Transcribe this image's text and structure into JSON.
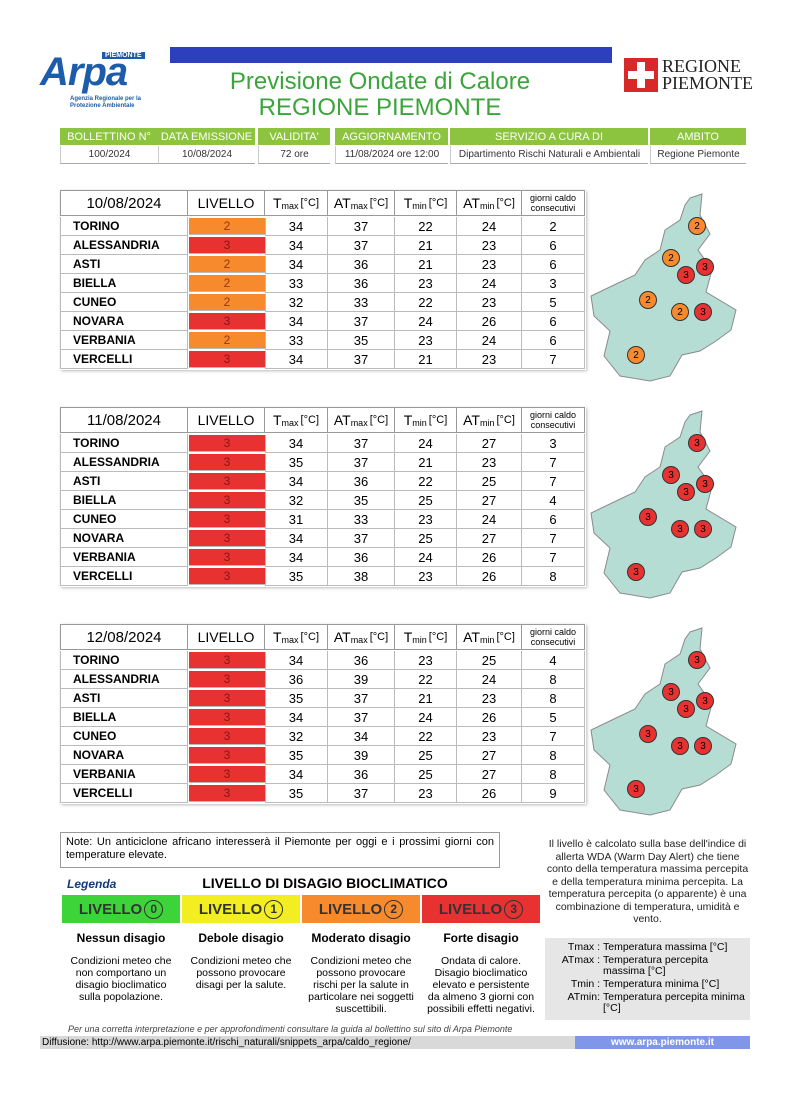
{
  "header": {
    "logo": {
      "name": "Arpa",
      "region": "PIEMONTE",
      "subtitle": "Agenzia Regionale per la Protezione Ambientale"
    },
    "title": "Previsione Ondate di Calore",
    "subtitle": "REGIONE PIEMONTE",
    "region_logo": [
      "REGIONE",
      "PIEMONTE"
    ]
  },
  "info": {
    "headers": [
      "BOLLETTINO N°",
      "DATA EMISSIONE",
      "VALIDITA'",
      "AGGIORNAMENTO",
      "SERVIZIO A CURA DI",
      "AMBITO"
    ],
    "values": [
      "100/2024",
      "10/08/2024",
      "72 ore",
      "11/08/2024 ore 12:00",
      "Dipartimento Rischi Naturali e Ambientali",
      "Regione Piemonte"
    ]
  },
  "columns": [
    {
      "text": "LIVELLO"
    },
    {
      "base": "T",
      "sub": "max",
      "unit": "[°C]"
    },
    {
      "base": "AT",
      "sub": "max",
      "unit": "[°C]"
    },
    {
      "base": "T",
      "sub": "min",
      "unit": "[°C]"
    },
    {
      "base": "AT",
      "sub": "min",
      "unit": "[°C]"
    },
    {
      "text": "giorni caldo consecutivi"
    }
  ],
  "days": [
    {
      "date": "10/08/2024",
      "rows": [
        [
          "TORINO",
          2,
          34,
          37,
          22,
          24,
          2
        ],
        [
          "ALESSANDRIA",
          3,
          34,
          37,
          21,
          23,
          6
        ],
        [
          "ASTI",
          2,
          34,
          36,
          21,
          23,
          6
        ],
        [
          "BIELLA",
          2,
          33,
          36,
          23,
          24,
          3
        ],
        [
          "CUNEO",
          2,
          32,
          33,
          22,
          23,
          5
        ],
        [
          "NOVARA",
          3,
          34,
          37,
          24,
          26,
          6
        ],
        [
          "VERBANIA",
          2,
          33,
          35,
          23,
          24,
          6
        ],
        [
          "VERCELLI",
          3,
          34,
          37,
          21,
          23,
          7
        ]
      ]
    },
    {
      "date": "11/08/2024",
      "rows": [
        [
          "TORINO",
          3,
          34,
          37,
          24,
          27,
          3
        ],
        [
          "ALESSANDRIA",
          3,
          35,
          37,
          21,
          23,
          7
        ],
        [
          "ASTI",
          3,
          34,
          36,
          22,
          25,
          7
        ],
        [
          "BIELLA",
          3,
          32,
          35,
          25,
          27,
          4
        ],
        [
          "CUNEO",
          3,
          31,
          33,
          23,
          24,
          6
        ],
        [
          "NOVARA",
          3,
          34,
          37,
          25,
          27,
          7
        ],
        [
          "VERBANIA",
          3,
          34,
          36,
          24,
          26,
          7
        ],
        [
          "VERCELLI",
          3,
          35,
          38,
          23,
          26,
          8
        ]
      ]
    },
    {
      "date": "12/08/2024",
      "rows": [
        [
          "TORINO",
          3,
          34,
          36,
          23,
          25,
          4
        ],
        [
          "ALESSANDRIA",
          3,
          36,
          39,
          22,
          24,
          8
        ],
        [
          "ASTI",
          3,
          35,
          37,
          21,
          23,
          8
        ],
        [
          "BIELLA",
          3,
          34,
          37,
          24,
          26,
          5
        ],
        [
          "CUNEO",
          3,
          32,
          34,
          22,
          23,
          7
        ],
        [
          "NOVARA",
          3,
          35,
          39,
          25,
          27,
          8
        ],
        [
          "VERBANIA",
          3,
          34,
          36,
          25,
          27,
          8
        ],
        [
          "VERCELLI",
          3,
          35,
          37,
          23,
          26,
          9
        ]
      ]
    }
  ],
  "note": "Note: Un anticiclone africano interesserà il Piemonte per oggi e i prossimi giorni con temperature elevate.",
  "legend": {
    "heading": "Legenda",
    "title": "LIVELLO DI DISAGIO BIOCLIMATICO",
    "levels": [
      {
        "label": "LIVELLO",
        "number": 0,
        "color": "#3dd43a",
        "name": "Nessun disagio",
        "description": "Condizioni meteo che non comportano un disagio bioclimatico sulla popolazione."
      },
      {
        "label": "LIVELLO",
        "number": 1,
        "color": "#f3ee20",
        "name": "Debole disagio",
        "description": "Condizioni meteo che possono provocare disagi per la salute."
      },
      {
        "label": "LIVELLO",
        "number": 2,
        "color": "#f68a2c",
        "name": "Moderato disagio",
        "description": "Condizioni meteo che possono provocare rischi per la salute in particolare nei soggetti suscettibili."
      },
      {
        "label": "LIVELLO",
        "number": 3,
        "color": "#e83131",
        "name": "Forte disagio",
        "description": "Ondata di calore. Disagio bioclimatico elevato e persistente da almeno 3 giorni con possibili effetti negativi."
      }
    ]
  },
  "explanation": "Il livello è calcolato sulla base dell'indice di allerta WDA (Warm Day Alert) che tiene conto della temperatura massima percepita e della temperatura minima percepita. La temperatura percepita (o apparente) è una combinazione di temperatura, umidità e vento.",
  "definitions": [
    {
      "term": "Tmax :",
      "def": "Temperatura massima [°C]"
    },
    {
      "term": "ATmax :",
      "def": "Temperatura percepita massima [°C]"
    },
    {
      "term": "Tmin :",
      "def": "Temperatura minima [°C]"
    },
    {
      "term": "ATmin:",
      "def": "Temperatura percepita minima [°C]"
    }
  ],
  "footer": {
    "guide": "Per una corretta interpretazione e per approfondimenti consultare la guida al bollettino sul sito di Arpa Piemonte",
    "diffusion": "Diffusione: http://www.arpa.piemonte.it/rischi_naturali/snippets_arpa/caldo_regione/",
    "site": "www.arpa.piemonte.it"
  }
}
